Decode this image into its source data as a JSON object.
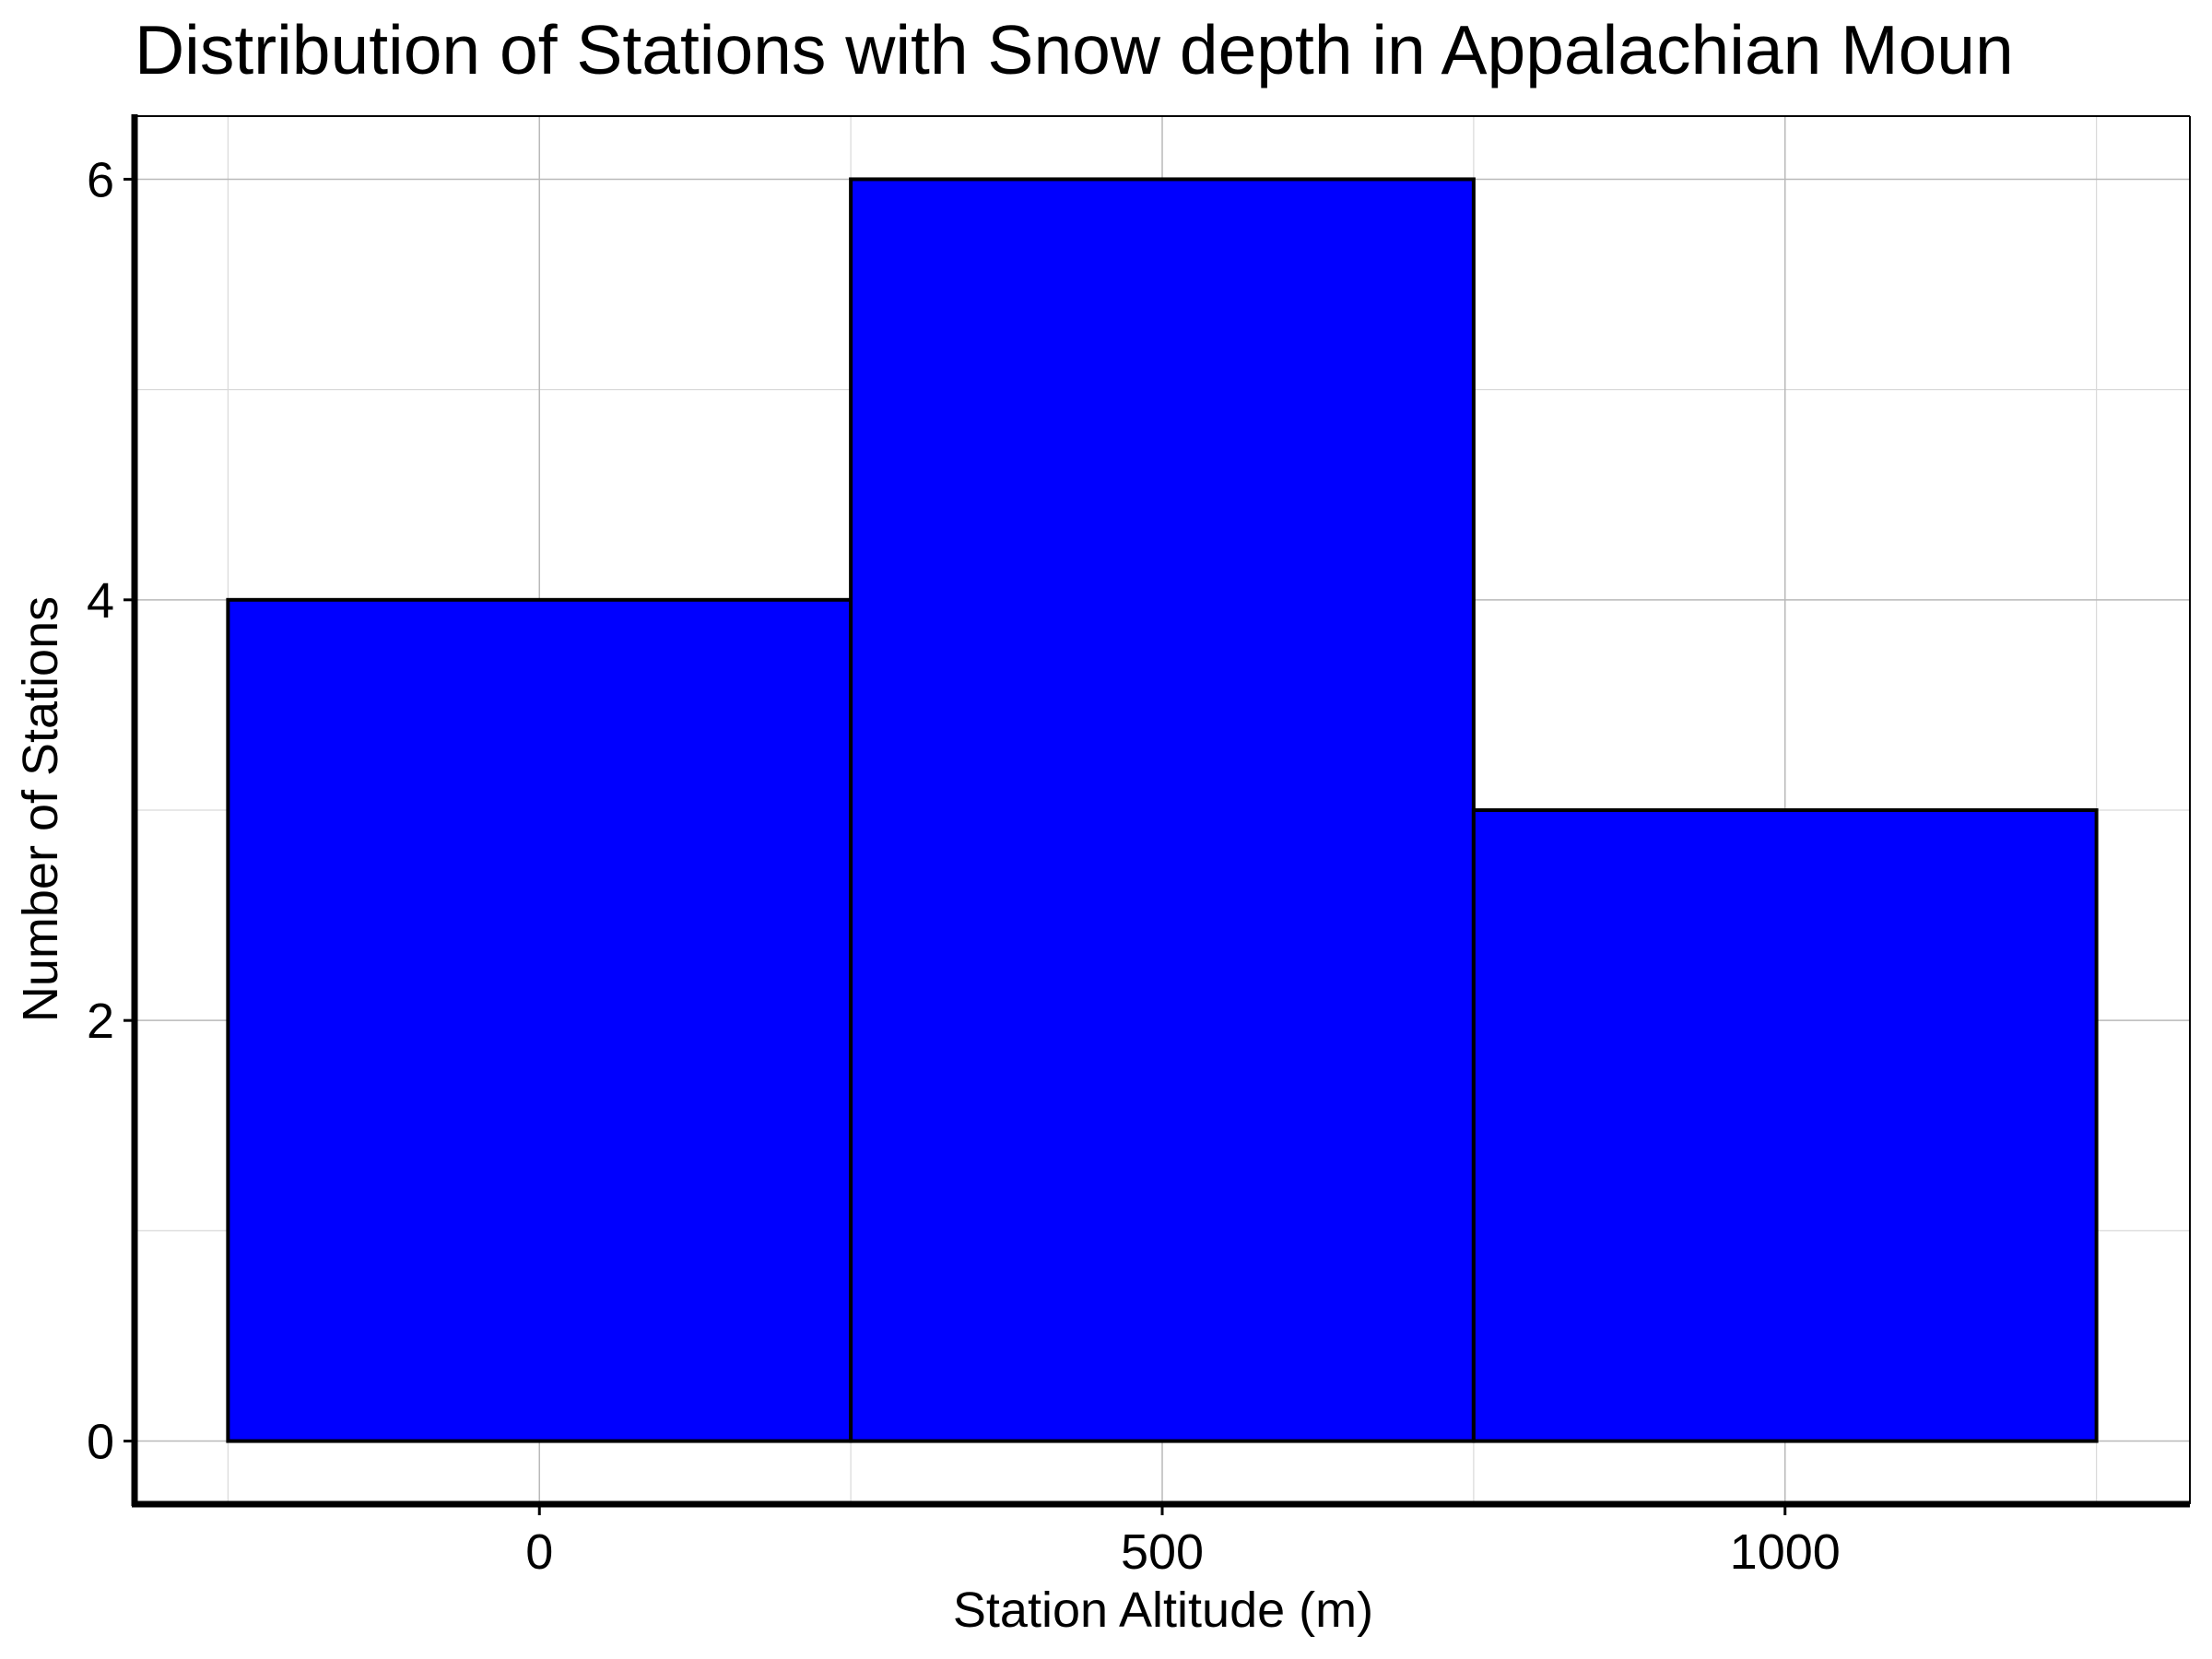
{
  "chart_data": {
    "type": "bar",
    "title": "Distribution of Stations with Snow depth in Appalachian Moun",
    "xlabel": "Station Altitude (m)",
    "ylabel": "Number of Stations",
    "bins": [
      {
        "x0": -250,
        "x1": 250,
        "count": 4
      },
      {
        "x0": 250,
        "x1": 750,
        "count": 6
      },
      {
        "x0": 750,
        "x1": 1250,
        "count": 3
      }
    ],
    "xlim": [
      -325,
      1325
    ],
    "ylim": [
      -0.3,
      6.3
    ],
    "xticks": [
      0,
      500,
      1000
    ],
    "xtick_labels": [
      "0",
      "500",
      "1000"
    ],
    "yticks": [
      0,
      2,
      4,
      6
    ],
    "ytick_labels": [
      "0",
      "2",
      "4",
      "6"
    ],
    "minor_yticks": [
      1,
      3,
      5
    ],
    "minor_xticks": [
      -250,
      250,
      750,
      1250
    ],
    "grid": true,
    "colors": {
      "bar_fill": "#0000ff",
      "bar_edge": "#000000",
      "axis": "#000000"
    }
  }
}
